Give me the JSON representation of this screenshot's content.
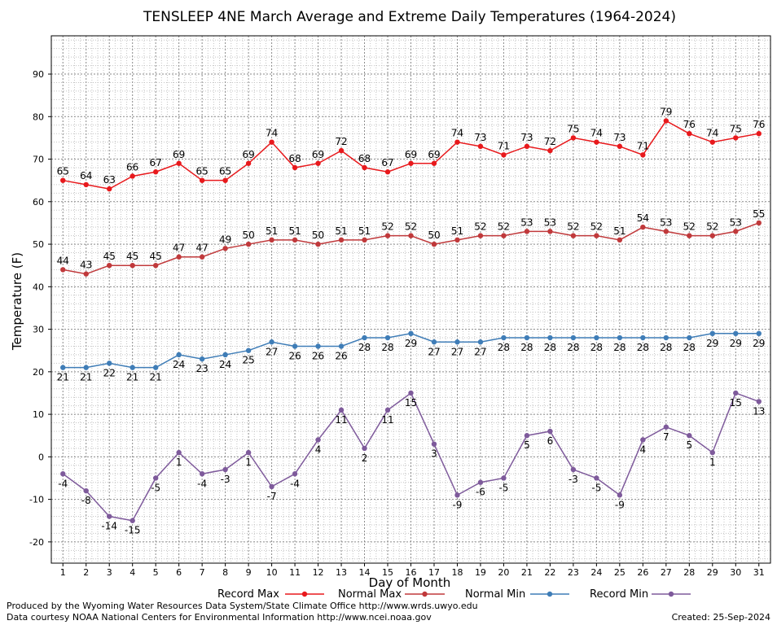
{
  "chart_data": {
    "type": "line",
    "title": "TENSLEEP 4NE March Average and Extreme Daily Temperatures (1964-2024)",
    "xlabel": "Day of Month",
    "ylabel": "Temperature (F)",
    "xlim": [
      0.5,
      31.5
    ],
    "ylim": [
      -25,
      99
    ],
    "yticks": [
      -20,
      -10,
      0,
      10,
      20,
      30,
      40,
      50,
      60,
      70,
      80,
      90
    ],
    "x": [
      1,
      2,
      3,
      4,
      5,
      6,
      7,
      8,
      9,
      10,
      11,
      12,
      13,
      14,
      15,
      16,
      17,
      18,
      19,
      20,
      21,
      22,
      23,
      24,
      25,
      26,
      27,
      28,
      29,
      30,
      31
    ],
    "grid": true,
    "legend_position": "bottom",
    "series": [
      {
        "name": "Record Max",
        "color": "#e8191c",
        "values": [
          65,
          64,
          63,
          66,
          67,
          69,
          65,
          65,
          69,
          74,
          68,
          69,
          72,
          68,
          67,
          69,
          69,
          74,
          73,
          71,
          73,
          72,
          75,
          74,
          73,
          71,
          79,
          76,
          74,
          75,
          76
        ]
      },
      {
        "name": "Normal Max",
        "color": "#c0393b",
        "values": [
          44,
          43,
          45,
          45,
          45,
          47,
          47,
          49,
          50,
          51,
          51,
          50,
          51,
          51,
          52,
          52,
          50,
          51,
          52,
          52,
          53,
          53,
          52,
          52,
          51,
          54,
          53,
          52,
          52,
          53,
          55
        ]
      },
      {
        "name": "Normal Min",
        "color": "#3f7db7",
        "values": [
          21,
          21,
          22,
          21,
          21,
          24,
          23,
          24,
          25,
          27,
          26,
          26,
          26,
          28,
          28,
          29,
          27,
          27,
          27,
          28,
          28,
          28,
          28,
          28,
          28,
          28,
          28,
          28,
          29,
          29,
          29
        ]
      },
      {
        "name": "Record Min",
        "color": "#7e5a9b",
        "values": [
          -4,
          -8,
          -14,
          -15,
          -5,
          1,
          -4,
          -3,
          1,
          -7,
          -4,
          4,
          11,
          2,
          11,
          15,
          3,
          -9,
          -6,
          -5,
          5,
          6,
          -3,
          -5,
          -9,
          4,
          7,
          5,
          1,
          15,
          13
        ]
      }
    ]
  },
  "footer": {
    "produced_by": "Produced by the Wyoming Water Resources Data System/State Climate Office http://www.wrds.uwyo.edu",
    "courtesy": "Data courtesy NOAA National Centers for Environmental Information http://www.ncei.noaa.gov",
    "created": "Created:  25-Sep-2024"
  }
}
